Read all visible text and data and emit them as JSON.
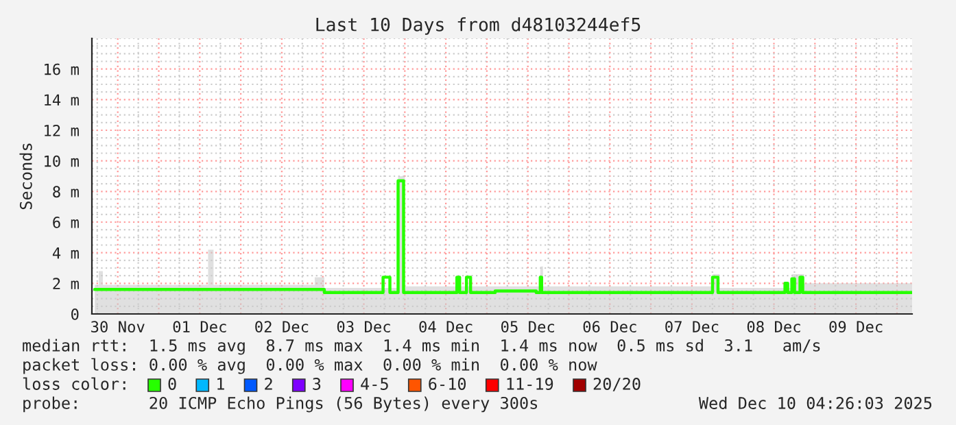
{
  "chart_data": {
    "type": "step",
    "title": "Last 10 Days from d48103244ef5",
    "ylabel": "Seconds",
    "legend_title": "loss color:",
    "legend": "bottom",
    "grid": true,
    "xlim": [
      "2025-11-30T04:26",
      "2025-12-10T04:26"
    ],
    "xticks": [
      {
        "value": "2025-11-30T12:00",
        "label": "30 Nov"
      },
      {
        "value": "2025-12-01T12:00",
        "label": "01 Dec"
      },
      {
        "value": "2025-12-02T12:00",
        "label": "02 Dec"
      },
      {
        "value": "2025-12-03T12:00",
        "label": "03 Dec"
      },
      {
        "value": "2025-12-04T12:00",
        "label": "04 Dec"
      },
      {
        "value": "2025-12-05T12:00",
        "label": "05 Dec"
      },
      {
        "value": "2025-12-06T12:00",
        "label": "06 Dec"
      },
      {
        "value": "2025-12-07T12:00",
        "label": "07 Dec"
      },
      {
        "value": "2025-12-08T12:00",
        "label": "08 Dec"
      },
      {
        "value": "2025-12-09T12:00",
        "label": "09 Dec"
      },
      {
        "value": "2025-12-01T00:00",
        "label": null
      },
      {
        "value": "2025-12-02T00:00",
        "label": null
      },
      {
        "value": "2025-12-03T00:00",
        "label": null
      },
      {
        "value": "2025-12-04T00:00",
        "label": null
      },
      {
        "value": "2025-12-05T00:00",
        "label": null
      },
      {
        "value": "2025-12-06T00:00",
        "label": null
      },
      {
        "value": "2025-12-07T00:00",
        "label": null
      },
      {
        "value": "2025-12-08T00:00",
        "label": null
      },
      {
        "value": "2025-12-09T00:00",
        "label": null
      },
      {
        "value": "2025-12-10T00:00",
        "label": null
      }
    ],
    "ylim": [
      0,
      18
    ],
    "yticks": [
      0,
      {
        "value": 2,
        "label": "2 m"
      },
      {
        "value": 4,
        "label": "4 m"
      },
      {
        "value": 6,
        "label": "6 m"
      },
      {
        "value": 8,
        "label": "8 m"
      },
      {
        "value": 10,
        "label": "10 m"
      },
      {
        "value": 12,
        "label": "12 m"
      },
      {
        "value": 14,
        "label": "14 m"
      },
      {
        "value": 16,
        "label": "16 m"
      }
    ],
    "series": [
      {
        "type": "area",
        "color": "#cccccc",
        "x": [
          "2025-11-30T05:14",
          "2025-11-30T06:26",
          "2025-11-30T07:38",
          "2025-12-01T14:26",
          "2025-12-01T16:02",
          "2025-12-02T21:38",
          "2025-12-03T00:26",
          "2025-12-03T22:02",
          "2025-12-04T00:02",
          "2025-12-05T15:38",
          "2025-12-05T16:26",
          "2025-12-07T18:02",
          "2025-12-07T20:02",
          "2025-12-08T17:14",
          "2025-12-08T20:50",
          "2025-12-10T04:26"
        ],
        "values": [
          1.9,
          2.8,
          1.9,
          4.2,
          1.9,
          2.4,
          1.7,
          9.0,
          1.8,
          3.1,
          1.8,
          2.6,
          1.7,
          2.6,
          2.0,
          2.0
        ]
      },
      {
        "name": "0",
        "color": "#26ff00",
        "x": [
          "2025-11-30T05:14",
          "2025-12-03T00:26",
          "2025-12-03T17:38",
          "2025-12-03T19:38",
          "2025-12-03T22:02",
          "2025-12-03T23:38",
          "2025-12-04T15:14",
          "2025-12-04T16:02",
          "2025-12-04T18:02",
          "2025-12-04T19:14",
          "2025-12-05T02:26",
          "2025-12-05T14:26",
          "2025-12-05T15:38",
          "2025-12-05T16:02",
          "2025-12-07T18:02",
          "2025-12-07T19:38",
          "2025-12-08T15:14",
          "2025-12-08T16:02",
          "2025-12-08T17:14",
          "2025-12-08T18:02",
          "2025-12-08T19:38",
          "2025-12-08T20:26",
          "2025-12-10T04:26"
        ],
        "values": [
          1.6,
          1.4,
          2.4,
          1.4,
          8.7,
          1.4,
          2.4,
          1.4,
          2.4,
          1.4,
          1.5,
          1.4,
          2.4,
          1.4,
          2.4,
          1.4,
          2.0,
          1.4,
          2.3,
          1.4,
          2.4,
          1.4,
          1.4
        ]
      },
      {
        "name": "1",
        "color": "#00b8ff"
      },
      {
        "name": "2",
        "color": "#0059ff"
      },
      {
        "name": "3",
        "color": "#7e00ff"
      },
      {
        "name": "4-5",
        "color": "#ff00ff"
      },
      {
        "name": "6-10",
        "color": "#ff5500"
      },
      {
        "name": "11-19",
        "color": "#ff0000"
      },
      {
        "name": "20/20",
        "color": "#a10000"
      }
    ],
    "annotations": [
      "median rtt:  1.5 ms avg  8.7 ms max  1.4 ms min  1.4 ms now  0.5 ms sd  3.1   am/s",
      "packet loss: 0.00 % avg  0.00 % max  0.00 % min  0.00 % now",
      "probe:       20 ICMP Echo Pings (56 Bytes) every 300s",
      "Wed Dec 10 04:26:03 2025"
    ]
  }
}
